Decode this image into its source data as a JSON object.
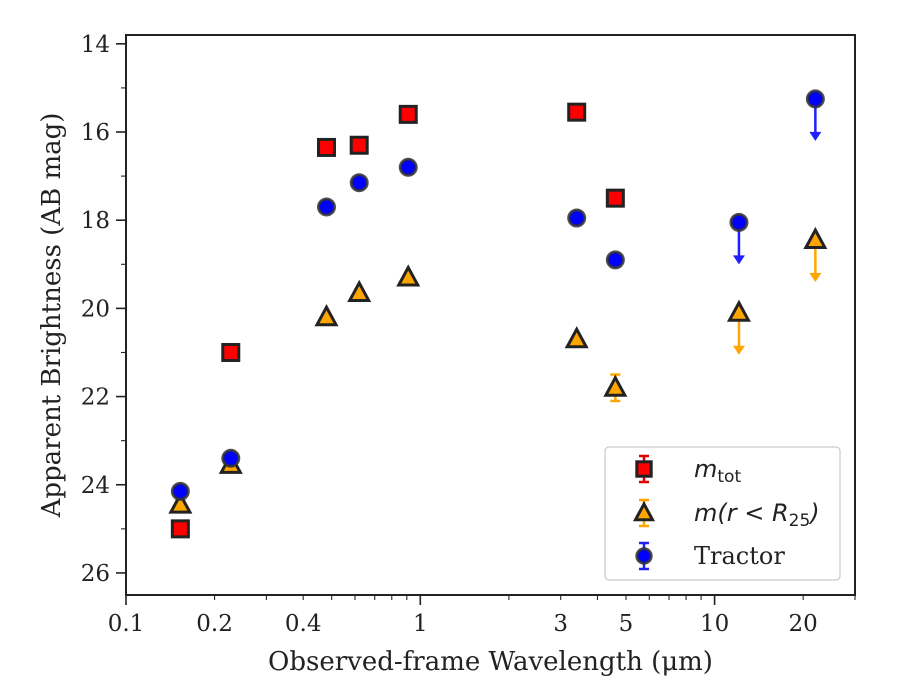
{
  "chart_data": {
    "type": "scatter",
    "title": "",
    "xlabel": "Observed-frame Wavelength (μm)",
    "ylabel": "Apparent Brightness (AB mag)",
    "xscale": "log",
    "yscale": "linear",
    "y_inverted": true,
    "xlim": [
      0.1,
      30
    ],
    "ylim": [
      26.5,
      13.8
    ],
    "xticks": [
      0.1,
      0.2,
      0.4,
      1,
      3,
      5,
      10,
      20
    ],
    "xtick_labels": [
      "0.1",
      "0.2",
      "0.4",
      "1",
      "3",
      "5",
      "10",
      "20"
    ],
    "yticks": [
      14,
      16,
      18,
      20,
      22,
      24,
      26
    ],
    "ytick_labels": [
      "14",
      "16",
      "18",
      "20",
      "22",
      "24",
      "26"
    ],
    "grid": false,
    "legend": {
      "placement": "lower-right",
      "entries": [
        {
          "series": 0,
          "label": "m",
          "sub": "tot"
        },
        {
          "series": 1,
          "label": "m(r < R",
          "sub": "25",
          "suffix": ")"
        },
        {
          "series": 2,
          "label": "Tractor",
          "sub": "",
          "suffix": ""
        }
      ]
    },
    "series": [
      {
        "name": "m_tot",
        "marker": "square",
        "color": "#ff0000",
        "edge_color": "#222222",
        "errorbar_color": "#e00000",
        "points": [
          {
            "x": 0.153,
            "y": 25.0,
            "err": 0.1,
            "upper_limit": false
          },
          {
            "x": 0.227,
            "y": 21.0,
            "err": 0.05,
            "upper_limit": false
          },
          {
            "x": 0.48,
            "y": 16.35,
            "err": 0.02,
            "upper_limit": false
          },
          {
            "x": 0.62,
            "y": 16.3,
            "err": 0.02,
            "upper_limit": false
          },
          {
            "x": 0.91,
            "y": 15.6,
            "err": 0.02,
            "upper_limit": false
          },
          {
            "x": 3.4,
            "y": 15.55,
            "err": 0.03,
            "upper_limit": false
          },
          {
            "x": 4.6,
            "y": 17.5,
            "err": 0.05,
            "upper_limit": false
          }
        ]
      },
      {
        "name": "m(r<R25)",
        "marker": "triangle",
        "color": "#ffa500",
        "edge_color": "#222222",
        "errorbar_color": "#ffa500",
        "points": [
          {
            "x": 0.153,
            "y": 24.45,
            "err": 0.1,
            "upper_limit": false
          },
          {
            "x": 0.227,
            "y": 23.55,
            "err": 0.08,
            "upper_limit": false
          },
          {
            "x": 0.48,
            "y": 20.2,
            "err": 0.03,
            "upper_limit": false
          },
          {
            "x": 0.62,
            "y": 19.65,
            "err": 0.03,
            "upper_limit": false
          },
          {
            "x": 0.91,
            "y": 19.3,
            "err": 0.03,
            "upper_limit": false
          },
          {
            "x": 3.4,
            "y": 20.7,
            "err": 0.05,
            "upper_limit": false
          },
          {
            "x": 4.6,
            "y": 21.8,
            "err": 0.3,
            "upper_limit": false
          },
          {
            "x": 12.1,
            "y": 20.1,
            "err": 0,
            "upper_limit": true
          },
          {
            "x": 22.0,
            "y": 18.45,
            "err": 0,
            "upper_limit": true
          }
        ]
      },
      {
        "name": "Tractor",
        "marker": "circle",
        "color": "#0000ff",
        "edge_color": "#333333",
        "errorbar_color": "#2020ff",
        "points": [
          {
            "x": 0.153,
            "y": 24.15,
            "err": 0.05,
            "upper_limit": false
          },
          {
            "x": 0.227,
            "y": 23.4,
            "err": 0.05,
            "upper_limit": false
          },
          {
            "x": 0.48,
            "y": 17.7,
            "err": 0.02,
            "upper_limit": false
          },
          {
            "x": 0.62,
            "y": 17.15,
            "err": 0.02,
            "upper_limit": false
          },
          {
            "x": 0.91,
            "y": 16.8,
            "err": 0.02,
            "upper_limit": false
          },
          {
            "x": 3.4,
            "y": 17.95,
            "err": 0.03,
            "upper_limit": false
          },
          {
            "x": 4.6,
            "y": 18.9,
            "err": 0.05,
            "upper_limit": false
          },
          {
            "x": 12.1,
            "y": 18.05,
            "err": 0,
            "upper_limit": true
          },
          {
            "x": 22.0,
            "y": 15.25,
            "err": 0,
            "upper_limit": true
          }
        ]
      }
    ]
  }
}
